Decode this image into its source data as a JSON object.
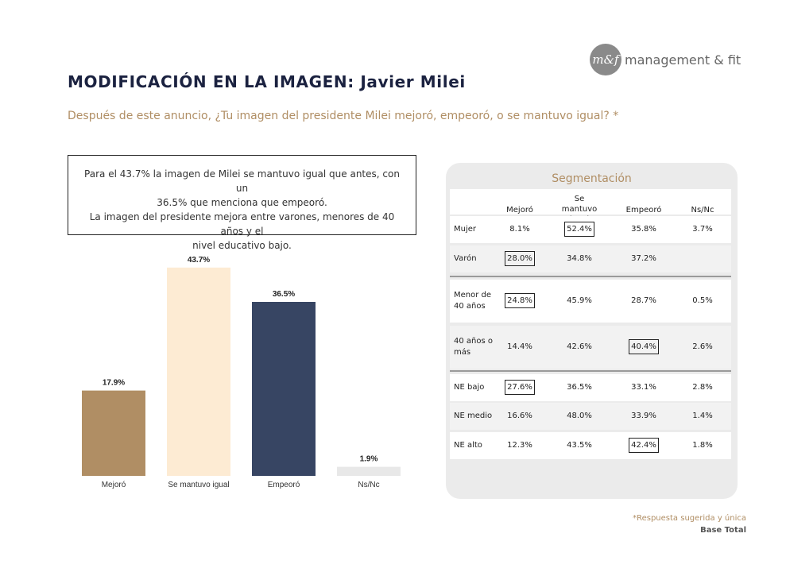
{
  "brand": {
    "badge": "m&f",
    "name": "management & fit"
  },
  "title": "MODIFICACIÓN EN LA IMAGEN: Javier Milei",
  "subtitle": "Después de este anuncio, ¿Tu imagen del presidente Milei mejoró, empeoró, o se mantuvo igual? *",
  "note": {
    "lines": [
      "Para el 43.7% la imagen de Milei se mantuvo igual que antes, con un",
      "36.5% que menciona que empeoró.",
      "La imagen del presidente mejora entre varones, menores de 40 años y el",
      "nivel educativo bajo."
    ]
  },
  "chart_data": [
    {
      "type": "bar",
      "categories": [
        "Mejoró",
        "Se mantuvo igual",
        "Empeoró",
        "Ns/Nc"
      ],
      "values": [
        17.9,
        43.7,
        36.5,
        1.9
      ],
      "value_labels": [
        "17.9%",
        "43.7%",
        "36.5%",
        "1.9%"
      ],
      "colors": [
        "#b08e64",
        "#fdebd3",
        "#374563",
        "#e8e8e8"
      ],
      "ylim": [
        0,
        45
      ],
      "grid": false
    },
    {
      "type": "table",
      "title": "Segmentación",
      "columns": [
        "Mejoró",
        "Se mantuvo igual",
        "Empeoró",
        "Ns/Nc"
      ],
      "rows": [
        {
          "label": "Mujer",
          "values": [
            "8.1%",
            "52.4%",
            "35.8%",
            "3.7%"
          ],
          "highlight": 1
        },
        {
          "label": "Varón",
          "values": [
            "28.0%",
            "34.8%",
            "37.2%",
            ""
          ],
          "highlight": 0
        },
        {
          "label": "Menor de 40 años",
          "values": [
            "24.8%",
            "45.9%",
            "28.7%",
            "0.5%"
          ],
          "highlight": 0
        },
        {
          "label": "40 años o más",
          "values": [
            "14.4%",
            "42.6%",
            "40.4%",
            "2.6%"
          ],
          "highlight": 2
        },
        {
          "label": "NE bajo",
          "values": [
            "27.6%",
            "36.5%",
            "33.1%",
            "2.8%"
          ],
          "highlight": 0
        },
        {
          "label": "NE medio",
          "values": [
            "16.6%",
            "48.0%",
            "33.9%",
            "1.4%"
          ],
          "highlight": -1
        },
        {
          "label": "NE alto",
          "values": [
            "12.3%",
            "43.5%",
            "42.4%",
            "1.8%"
          ],
          "highlight": 2
        }
      ]
    }
  ],
  "footnote": "*Respuesta sugerida y única",
  "base": "Base Total"
}
